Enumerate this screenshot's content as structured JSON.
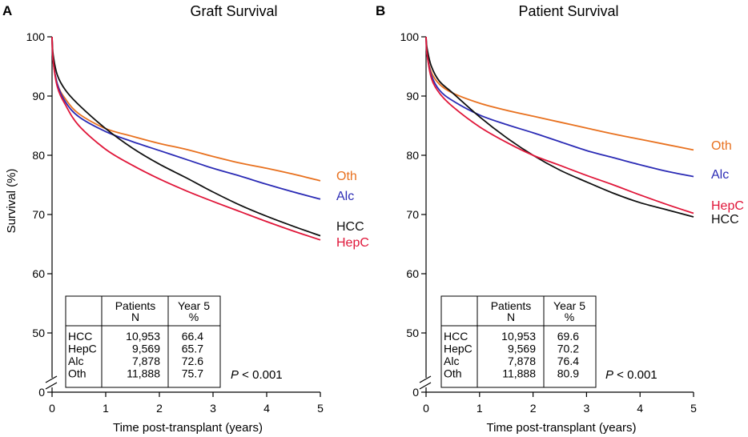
{
  "chart_data": [
    {
      "type": "line",
      "panel_letter": "A",
      "title": "Graft Survival",
      "xlabel": "Time post-transplant (years)",
      "ylabel": "Survival (%)",
      "xlim": [
        0,
        5
      ],
      "ylim": [
        50,
        100
      ],
      "y_break_label": "0",
      "x_ticks": [
        "0",
        "1",
        "2",
        "3",
        "4",
        "5"
      ],
      "y_ticks": [
        "50",
        "60",
        "70",
        "80",
        "90",
        "100"
      ],
      "series": [
        {
          "name": "Oth",
          "color": "#e8711f",
          "x": [
            0,
            0.02,
            0.1,
            0.25,
            0.5,
            1,
            1.5,
            2,
            2.5,
            3,
            3.5,
            4,
            4.5,
            5
          ],
          "y": [
            100,
            96,
            92,
            89.5,
            87,
            84.5,
            83.2,
            82,
            81,
            79.8,
            78.7,
            77.8,
            76.8,
            75.7
          ]
        },
        {
          "name": "Alc",
          "color": "#2b2bb5",
          "x": [
            0,
            0.02,
            0.1,
            0.25,
            0.5,
            1,
            1.5,
            2,
            2.5,
            3,
            3.5,
            4,
            4.5,
            5
          ],
          "y": [
            100,
            96,
            92,
            89,
            86.5,
            84,
            82.3,
            80.8,
            79.3,
            77.8,
            76.5,
            75.1,
            73.8,
            72.6
          ]
        },
        {
          "name": "HCC",
          "color": "#111111",
          "x": [
            0,
            0.02,
            0.1,
            0.25,
            0.5,
            1,
            1.5,
            2,
            2.5,
            3,
            3.5,
            4,
            4.5,
            5
          ],
          "y": [
            100,
            97,
            93.5,
            91,
            88.5,
            84.5,
            81.2,
            78.5,
            76.2,
            73.8,
            71.6,
            69.7,
            68,
            66.4
          ]
        },
        {
          "name": "HepC",
          "color": "#e0173a",
          "x": [
            0,
            0.02,
            0.1,
            0.25,
            0.5,
            1,
            1.5,
            2,
            2.5,
            3,
            3.5,
            4,
            4.5,
            5
          ],
          "y": [
            100,
            96,
            91.5,
            88.5,
            85,
            81,
            78.3,
            76,
            74,
            72.2,
            70.5,
            68.8,
            67.2,
            65.7
          ]
        }
      ],
      "line_labels": [
        "Oth",
        "Alc",
        "HCC",
        "HepC"
      ],
      "table": {
        "headers": [
          "",
          "Patients N",
          "Year 5 %"
        ],
        "header_lines": [
          [
            "",
            ""
          ],
          [
            "Patients",
            "N"
          ],
          [
            "Year 5",
            "%"
          ]
        ],
        "rows": [
          [
            "HCC",
            "10,953",
            "66.4"
          ],
          [
            "HepC",
            "9,569",
            "65.7"
          ],
          [
            "Alc",
            "7,878",
            "72.6"
          ],
          [
            "Oth",
            "11,888",
            "75.7"
          ]
        ]
      },
      "p_value": {
        "prefix": "P",
        "text": " < 0.001"
      }
    },
    {
      "type": "line",
      "panel_letter": "B",
      "title": "Patient Survival",
      "xlabel": "Time post-transplant (years)",
      "ylabel": "",
      "xlim": [
        0,
        5
      ],
      "ylim": [
        50,
        100
      ],
      "y_break_label": "0",
      "x_ticks": [
        "0",
        "1",
        "2",
        "3",
        "4",
        "5"
      ],
      "y_ticks": [
        "50",
        "60",
        "70",
        "80",
        "90",
        "100"
      ],
      "series": [
        {
          "name": "Oth",
          "color": "#e8711f",
          "x": [
            0,
            0.02,
            0.1,
            0.25,
            0.5,
            1,
            1.5,
            2,
            2.5,
            3,
            3.5,
            4,
            4.5,
            5
          ],
          "y": [
            100,
            97,
            94,
            92,
            90.5,
            88.8,
            87.6,
            86.6,
            85.6,
            84.6,
            83.6,
            82.7,
            81.8,
            80.9
          ]
        },
        {
          "name": "Alc",
          "color": "#2b2bb5",
          "x": [
            0,
            0.02,
            0.1,
            0.25,
            0.5,
            1,
            1.5,
            2,
            2.5,
            3,
            3.5,
            4,
            4.5,
            5
          ],
          "y": [
            100,
            97,
            93.5,
            91,
            89.2,
            86.8,
            85.2,
            83.8,
            82.3,
            80.8,
            79.6,
            78.4,
            77.3,
            76.4
          ]
        },
        {
          "name": "HCC",
          "color": "#111111",
          "x": [
            0,
            0.02,
            0.1,
            0.25,
            0.5,
            1,
            1.5,
            2,
            2.5,
            3,
            3.5,
            4,
            4.5,
            5
          ],
          "y": [
            100,
            98,
            95,
            92.5,
            90.5,
            86.5,
            83,
            80,
            77.5,
            75.5,
            73.6,
            72,
            70.8,
            69.6
          ]
        },
        {
          "name": "HepC",
          "color": "#e0173a",
          "x": [
            0,
            0.02,
            0.1,
            0.25,
            0.5,
            1,
            1.5,
            2,
            2.5,
            3,
            3.5,
            4,
            4.5,
            5
          ],
          "y": [
            100,
            97,
            93,
            90.5,
            88.2,
            84.8,
            82.2,
            80,
            78.3,
            76.6,
            75,
            73.3,
            71.7,
            70.2
          ]
        }
      ],
      "line_labels": [
        "Oth",
        "Alc",
        "HepC",
        "HCC"
      ],
      "table": {
        "headers": [
          "",
          "Patients N",
          "Year 5 %"
        ],
        "header_lines": [
          [
            "",
            ""
          ],
          [
            "Patients",
            "N"
          ],
          [
            "Year 5",
            "%"
          ]
        ],
        "rows": [
          [
            "HCC",
            "10,953",
            "69.6"
          ],
          [
            "HepC",
            "9,569",
            "70.2"
          ],
          [
            "Alc",
            "7,878",
            "76.4"
          ],
          [
            "Oth",
            "11,888",
            "80.9"
          ]
        ]
      },
      "p_value": {
        "prefix": "P",
        "text": " < 0.001"
      }
    }
  ]
}
